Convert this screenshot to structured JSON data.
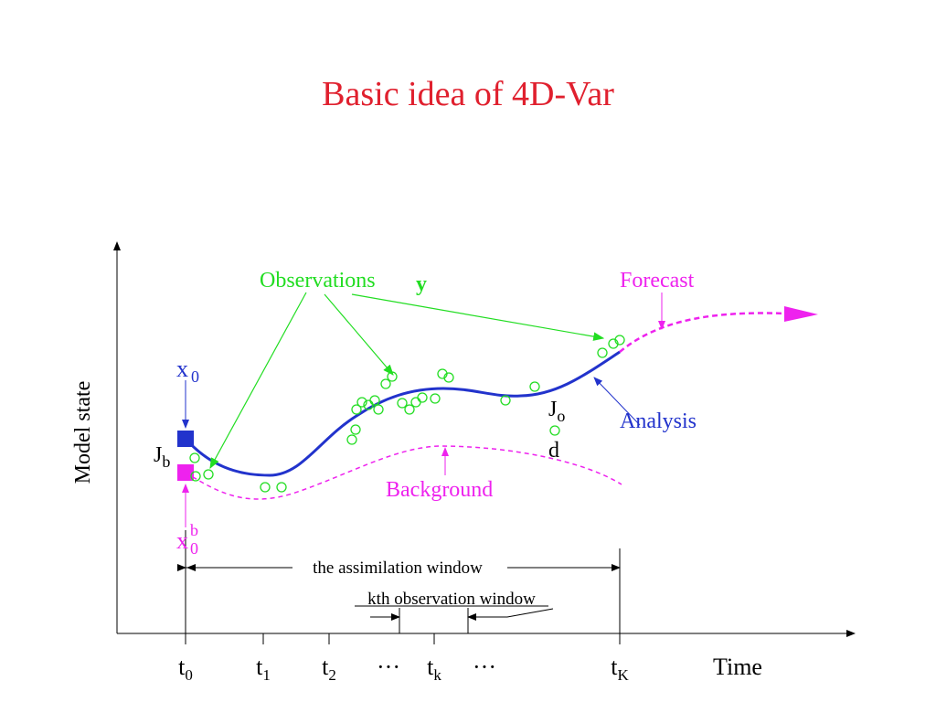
{
  "title": "Basic idea of 4D-Var",
  "labels": {
    "observations": "Observations",
    "y": "y",
    "forecast": "Forecast",
    "analysis": "Analysis",
    "background": "Background",
    "model_state": "Model state",
    "time": "Time",
    "assimilation_window": "the assimilation window",
    "kth_window": "kth observation window",
    "d": "d"
  },
  "symbols": {
    "x0": {
      "base": "x",
      "sub": "0"
    },
    "x0b": {
      "base": "x",
      "sub": "0",
      "sup": "b"
    },
    "jb": {
      "base": "J",
      "sub": "b"
    },
    "jo": {
      "base": "J",
      "sub": "o"
    }
  },
  "time_ticks": [
    {
      "base": "t",
      "sub": "0"
    },
    {
      "base": "t",
      "sub": "1"
    },
    {
      "base": "t",
      "sub": "2"
    },
    {
      "base": "···"
    },
    {
      "base": "t",
      "sub": "k"
    },
    {
      "base": "···"
    },
    {
      "base": "t",
      "sub": "K"
    }
  ]
}
